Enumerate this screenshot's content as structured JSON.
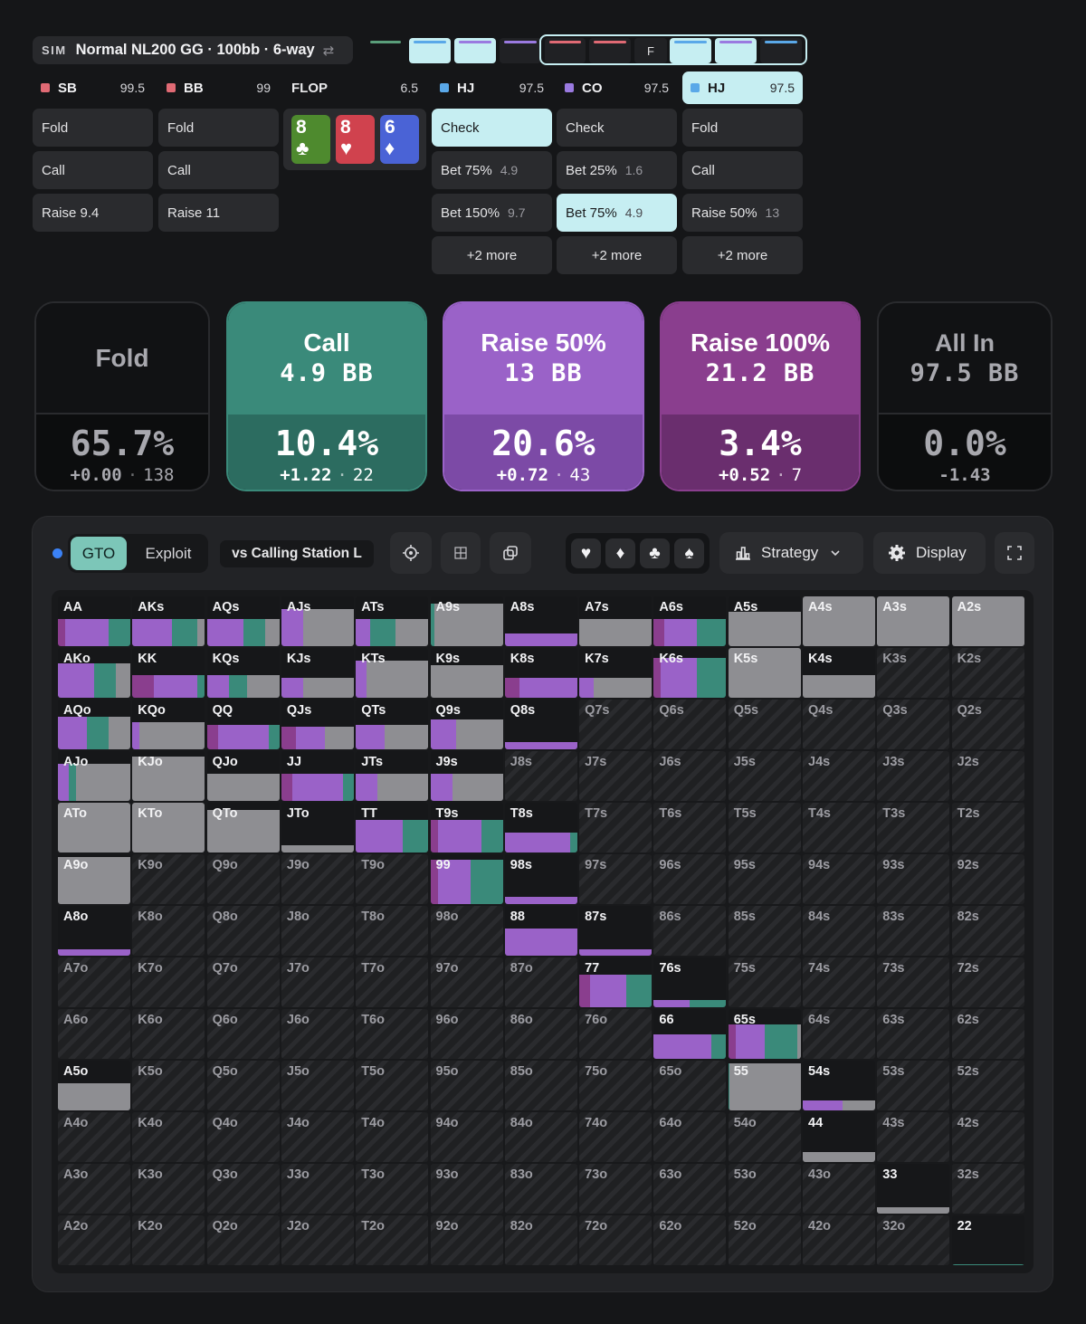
{
  "header": {
    "sim_tag": "SIM",
    "sim_name": "Normal NL200 GG · 100bb · 6-way",
    "swap_icon": "⇄",
    "history": [
      {
        "color": "#5a9e7a",
        "active": false,
        "label": ""
      },
      {
        "color": "#5aa8e8",
        "active": true,
        "label": ""
      },
      {
        "color": "#9a7ae0",
        "active": true,
        "label": ""
      },
      {
        "color": "#9a7ae0",
        "active": false,
        "label": ""
      },
      {
        "color": "#e06a74",
        "active": false,
        "label": ""
      },
      {
        "color": "#e06a74",
        "active": false,
        "label": ""
      },
      {
        "color": "",
        "active": false,
        "label": "F"
      },
      {
        "color": "#5aa8e8",
        "active": true,
        "label": ""
      },
      {
        "color": "#9a7ae0",
        "active": true,
        "label": ""
      },
      {
        "color": "#5aa8e8",
        "active": false,
        "label": ""
      }
    ]
  },
  "players": [
    {
      "name": "SB",
      "stack": "99.5",
      "color": "#e06a74",
      "selected": false,
      "actions": [
        {
          "label": "Fold"
        },
        {
          "label": "Call"
        },
        {
          "label": "Raise 9.4"
        }
      ]
    },
    {
      "name": "BB",
      "stack": "99",
      "color": "#e06a74",
      "selected": false,
      "actions": [
        {
          "label": "Fold"
        },
        {
          "label": "Call"
        },
        {
          "label": "Raise 11"
        }
      ]
    },
    {
      "name": "HJ",
      "stack": "97.5",
      "color": "#5aa8e8",
      "selected": false,
      "actions": [
        {
          "label": "Check",
          "selected": true
        },
        {
          "label": "Bet 75%",
          "size": "4.9"
        },
        {
          "label": "Bet 150%",
          "size": "9.7"
        },
        {
          "label": "+2 more",
          "more": true
        }
      ]
    },
    {
      "name": "CO",
      "stack": "97.5",
      "color": "#9a7ae0",
      "selected": false,
      "actions": [
        {
          "label": "Check"
        },
        {
          "label": "Bet 25%",
          "size": "1.6"
        },
        {
          "label": "Bet 75%",
          "size": "4.9",
          "selected": true
        },
        {
          "label": "+2 more",
          "more": true
        }
      ]
    },
    {
      "name": "HJ",
      "stack": "97.5",
      "color": "#5aa8e8",
      "selected": true,
      "actions": [
        {
          "label": "Fold"
        },
        {
          "label": "Call"
        },
        {
          "label": "Raise 50%",
          "size": "13"
        },
        {
          "label": "+2 more",
          "more": true
        }
      ]
    }
  ],
  "flop": {
    "label": "FLOP",
    "pot": "6.5",
    "cards": [
      {
        "rank": "8",
        "suit": "♣",
        "color": "#4e8a2e"
      },
      {
        "rank": "8",
        "suit": "♥",
        "color": "#d0424e"
      },
      {
        "rank": "6",
        "suit": "♦",
        "color": "#4a63d6"
      }
    ]
  },
  "action_cards": [
    {
      "t1": "Fold",
      "t2": "",
      "pct": "65.7%",
      "ev": "+0.00",
      "combos": "138",
      "top": "#111214",
      "bot": "#0c0d0e",
      "fg": "#a8a8ae"
    },
    {
      "t1": "Call",
      "t2": "4.9 BB",
      "pct": "10.4%",
      "ev": "+1.22",
      "combos": "22",
      "top": "#3a8a7a",
      "bot": "#2c6c60",
      "fg": "#ffffff"
    },
    {
      "t1": "Raise 50%",
      "t2": "13 BB",
      "pct": "20.6%",
      "ev": "+0.72",
      "combos": "43",
      "top": "#9a62c8",
      "bot": "#7c4aa6",
      "fg": "#ffffff"
    },
    {
      "t1": "Raise 100%",
      "t2": "21.2 BB",
      "pct": "3.4%",
      "ev": "+0.52",
      "combos": "7",
      "top": "#8a3e8e",
      "bot": "#6a2e6e",
      "fg": "#ffffff"
    },
    {
      "t1": "All In",
      "t2": "97.5 BB",
      "pct": "0.0%",
      "ev": "-1.43",
      "combos": "",
      "top": "#111214",
      "bot": "#0c0d0e",
      "fg": "#a8a8ae"
    }
  ],
  "toolbar": {
    "gto": "GTO",
    "exploit": "Exploit",
    "vs": "vs Calling Station L",
    "strategy": "Strategy",
    "display": "Display",
    "suits": [
      "♥",
      "♦",
      "♣",
      "♠"
    ]
  },
  "colors": {
    "fold": "#8e8e92",
    "call": "#3a8a7a",
    "raise50": "#9a62c8",
    "raise100": "#8a3e8e"
  },
  "matrix": {
    "ranks": [
      "A",
      "K",
      "Q",
      "J",
      "T",
      "9",
      "8",
      "7",
      "6",
      "5",
      "4",
      "3",
      "2"
    ],
    "rows": [
      [
        "AA",
        "AKs",
        "AQs",
        "AJs",
        "ATs",
        "A9s",
        "A8s",
        "A7s",
        "A6s",
        "A5s",
        "A4s",
        "A3s",
        "A2s"
      ],
      [
        "AKo",
        "KK",
        "KQs",
        "KJs",
        "KTs",
        "K9s",
        "K8s",
        "K7s",
        "K6s",
        "K5s",
        "K4s",
        "K3s",
        "K2s"
      ],
      [
        "AQo",
        "KQo",
        "QQ",
        "QJs",
        "QTs",
        "Q9s",
        "Q8s",
        "Q7s",
        "Q6s",
        "Q5s",
        "Q4s",
        "Q3s",
        "Q2s"
      ],
      [
        "AJo",
        "KJo",
        "QJo",
        "JJ",
        "JTs",
        "J9s",
        "J8s",
        "J7s",
        "J6s",
        "J5s",
        "J4s",
        "J3s",
        "J2s"
      ],
      [
        "ATo",
        "KTo",
        "QTo",
        "JTo",
        "TT",
        "T9s",
        "T8s",
        "T7s",
        "T6s",
        "T5s",
        "T4s",
        "T3s",
        "T2s"
      ],
      [
        "A9o",
        "K9o",
        "Q9o",
        "J9o",
        "T9o",
        "99",
        "98s",
        "97s",
        "96s",
        "95s",
        "94s",
        "93s",
        "92s"
      ],
      [
        "A8o",
        "K8o",
        "Q8o",
        "J8o",
        "T8o",
        "98o",
        "88",
        "87s",
        "86s",
        "85s",
        "84s",
        "83s",
        "82s"
      ],
      [
        "A7o",
        "K7o",
        "Q7o",
        "J7o",
        "T7o",
        "97o",
        "87o",
        "77",
        "76s",
        "75s",
        "74s",
        "73s",
        "72s"
      ],
      [
        "A6o",
        "K6o",
        "Q6o",
        "J6o",
        "T6o",
        "96o",
        "86o",
        "76o",
        "66",
        "65s",
        "64s",
        "63s",
        "62s"
      ],
      [
        "A5o",
        "K5o",
        "Q5o",
        "J5o",
        "T5o",
        "95o",
        "85o",
        "75o",
        "65o",
        "55",
        "54s",
        "53s",
        "52s"
      ],
      [
        "A4o",
        "K4o",
        "Q4o",
        "J4o",
        "T4o",
        "94o",
        "84o",
        "74o",
        "64o",
        "54o",
        "44",
        "43s",
        "42s"
      ],
      [
        "A3o",
        "K3o",
        "Q3o",
        "J3o",
        "T3o",
        "93o",
        "83o",
        "73o",
        "63o",
        "53o",
        "43o",
        "33",
        "32s"
      ],
      [
        "A2o",
        "K2o",
        "Q2o",
        "J2o",
        "T2o",
        "92o",
        "82o",
        "72o",
        "62o",
        "52o",
        "42o",
        "32o",
        "22"
      ]
    ],
    "strategy": {
      "AA": {
        "h": 0.55,
        "mix": [
          [
            "raise100",
            0.1
          ],
          [
            "raise50",
            0.6
          ],
          [
            "call",
            0.3
          ]
        ]
      },
      "AKs": {
        "h": 0.55,
        "mix": [
          [
            "raise50",
            0.55
          ],
          [
            "call",
            0.35
          ],
          [
            "fold",
            0.1
          ]
        ]
      },
      "AQs": {
        "h": 0.55,
        "mix": [
          [
            "raise50",
            0.5
          ],
          [
            "call",
            0.3
          ],
          [
            "fold",
            0.2
          ]
        ]
      },
      "AJs": {
        "h": 0.75,
        "mix": [
          [
            "raise50",
            0.3
          ],
          [
            "fold",
            0.7
          ]
        ]
      },
      "ATs": {
        "h": 0.55,
        "mix": [
          [
            "raise50",
            0.2
          ],
          [
            "call",
            0.35
          ],
          [
            "fold",
            0.45
          ]
        ]
      },
      "A9s": {
        "h": 0.85,
        "mix": [
          [
            "call",
            0.05
          ],
          [
            "fold",
            0.95
          ]
        ]
      },
      "A8s": {
        "h": 0.25,
        "mix": [
          [
            "raise50",
            1.0
          ]
        ]
      },
      "A7s": {
        "h": 0.55,
        "mix": [
          [
            "fold",
            1.0
          ]
        ]
      },
      "A6s": {
        "h": 0.55,
        "mix": [
          [
            "raise100",
            0.15
          ],
          [
            "raise50",
            0.45
          ],
          [
            "call",
            0.4
          ]
        ]
      },
      "A5s": {
        "h": 0.7,
        "mix": [
          [
            "fold",
            1.0
          ]
        ]
      },
      "A4s": {
        "h": 1.0,
        "mix": [
          [
            "fold",
            1.0
          ]
        ]
      },
      "A3s": {
        "h": 1.0,
        "mix": [
          [
            "fold",
            1.0
          ]
        ]
      },
      "A2s": {
        "h": 1.0,
        "mix": [
          [
            "fold",
            1.0
          ]
        ]
      },
      "AKo": {
        "h": 0.7,
        "mix": [
          [
            "raise50",
            0.5
          ],
          [
            "call",
            0.3
          ],
          [
            "fold",
            0.2
          ]
        ]
      },
      "KK": {
        "h": 0.45,
        "mix": [
          [
            "raise100",
            0.3
          ],
          [
            "raise50",
            0.6
          ],
          [
            "call",
            0.1
          ]
        ]
      },
      "KQs": {
        "h": 0.45,
        "mix": [
          [
            "raise50",
            0.3
          ],
          [
            "call",
            0.25
          ],
          [
            "fold",
            0.45
          ]
        ]
      },
      "KJs": {
        "h": 0.4,
        "mix": [
          [
            "raise50",
            0.3
          ],
          [
            "fold",
            0.7
          ]
        ]
      },
      "KTs": {
        "h": 0.75,
        "mix": [
          [
            "raise50",
            0.15
          ],
          [
            "fold",
            0.85
          ]
        ]
      },
      "K9s": {
        "h": 0.65,
        "mix": [
          [
            "fold",
            1.0
          ]
        ]
      },
      "K8s": {
        "h": 0.4,
        "mix": [
          [
            "raise100",
            0.2
          ],
          [
            "raise50",
            0.8
          ]
        ]
      },
      "K7s": {
        "h": 0.4,
        "mix": [
          [
            "raise50",
            0.2
          ],
          [
            "fold",
            0.8
          ]
        ]
      },
      "K6s": {
        "h": 0.8,
        "mix": [
          [
            "raise100",
            0.1
          ],
          [
            "raise50",
            0.5
          ],
          [
            "call",
            0.4
          ]
        ]
      },
      "K5s": {
        "h": 1.0,
        "mix": [
          [
            "fold",
            1.0
          ]
        ]
      },
      "K4s": {
        "h": 0.45,
        "mix": [
          [
            "fold",
            1.0
          ]
        ]
      },
      "AQo": {
        "h": 0.65,
        "mix": [
          [
            "raise50",
            0.4
          ],
          [
            "call",
            0.3
          ],
          [
            "fold",
            0.3
          ]
        ]
      },
      "KQo": {
        "h": 0.55,
        "mix": [
          [
            "raise50",
            0.1
          ],
          [
            "fold",
            0.9
          ]
        ]
      },
      "QQ": {
        "h": 0.5,
        "mix": [
          [
            "raise100",
            0.15
          ],
          [
            "raise50",
            0.7
          ],
          [
            "call",
            0.15
          ]
        ]
      },
      "QJs": {
        "h": 0.45,
        "mix": [
          [
            "raise100",
            0.2
          ],
          [
            "raise50",
            0.4
          ],
          [
            "fold",
            0.4
          ]
        ]
      },
      "QTs": {
        "h": 0.5,
        "mix": [
          [
            "raise50",
            0.4
          ],
          [
            "fold",
            0.6
          ]
        ]
      },
      "Q9s": {
        "h": 0.6,
        "mix": [
          [
            "raise50",
            0.35
          ],
          [
            "fold",
            0.65
          ]
        ]
      },
      "Q8s": {
        "h": 0.15,
        "mix": [
          [
            "raise50",
            1.0
          ]
        ]
      },
      "AJo": {
        "h": 0.75,
        "mix": [
          [
            "raise50",
            0.15
          ],
          [
            "call",
            0.1
          ],
          [
            "fold",
            0.75
          ]
        ]
      },
      "KJo": {
        "h": 0.9,
        "mix": [
          [
            "fold",
            1.0
          ]
        ]
      },
      "QJo": {
        "h": 0.55,
        "mix": [
          [
            "fold",
            1.0
          ]
        ]
      },
      "JJ": {
        "h": 0.55,
        "mix": [
          [
            "raise100",
            0.15
          ],
          [
            "raise50",
            0.7
          ],
          [
            "call",
            0.15
          ]
        ]
      },
      "JTs": {
        "h": 0.55,
        "mix": [
          [
            "raise50",
            0.3
          ],
          [
            "fold",
            0.7
          ]
        ]
      },
      "J9s": {
        "h": 0.55,
        "mix": [
          [
            "raise50",
            0.3
          ],
          [
            "fold",
            0.7
          ]
        ]
      },
      "ATo": {
        "h": 1.0,
        "mix": [
          [
            "fold",
            1.0
          ]
        ]
      },
      "KTo": {
        "h": 1.0,
        "mix": [
          [
            "fold",
            1.0
          ]
        ]
      },
      "QTo": {
        "h": 0.85,
        "mix": [
          [
            "fold",
            1.0
          ]
        ]
      },
      "JTo": {
        "h": 0.15,
        "mix": [
          [
            "fold",
            1.0
          ]
        ]
      },
      "TT": {
        "h": 0.65,
        "mix": [
          [
            "raise50",
            0.65
          ],
          [
            "call",
            0.35
          ]
        ]
      },
      "T9s": {
        "h": 0.65,
        "mix": [
          [
            "raise100",
            0.1
          ],
          [
            "raise50",
            0.6
          ],
          [
            "call",
            0.3
          ]
        ]
      },
      "T8s": {
        "h": 0.4,
        "mix": [
          [
            "raise50",
            0.9
          ],
          [
            "call",
            0.1
          ]
        ]
      },
      "A9o": {
        "h": 0.95,
        "mix": [
          [
            "fold",
            1.0
          ]
        ]
      },
      "99": {
        "h": 0.9,
        "mix": [
          [
            "raise100",
            0.1
          ],
          [
            "raise50",
            0.45
          ],
          [
            "call",
            0.45
          ]
        ]
      },
      "98s": {
        "h": 0.15,
        "mix": [
          [
            "raise50",
            1.0
          ]
        ]
      },
      "A8o": {
        "h": 0.12,
        "mix": [
          [
            "raise50",
            1.0
          ]
        ]
      },
      "88": {
        "h": 0.55,
        "mix": [
          [
            "raise50",
            1.0
          ]
        ]
      },
      "87s": {
        "h": 0.12,
        "mix": [
          [
            "raise50",
            1.0
          ]
        ]
      },
      "77": {
        "h": 0.65,
        "mix": [
          [
            "raise100",
            0.15
          ],
          [
            "raise50",
            0.5
          ],
          [
            "call",
            0.35
          ]
        ]
      },
      "76s": {
        "h": 0.15,
        "mix": [
          [
            "raise50",
            0.5
          ],
          [
            "call",
            0.5
          ]
        ]
      },
      "66": {
        "h": 0.5,
        "mix": [
          [
            "raise50",
            0.8
          ],
          [
            "call",
            0.2
          ]
        ]
      },
      "65s": {
        "h": 0.7,
        "mix": [
          [
            "raise100",
            0.1
          ],
          [
            "raise50",
            0.4
          ],
          [
            "call",
            0.45
          ],
          [
            "fold",
            0.05
          ]
        ]
      },
      "A5o": {
        "h": 0.55,
        "mix": [
          [
            "fold",
            1.0
          ]
        ]
      },
      "55": {
        "h": 0.95,
        "mix": [
          [
            "call",
            0.02
          ],
          [
            "fold",
            0.98
          ]
        ]
      },
      "54s": {
        "h": 0.2,
        "mix": [
          [
            "raise50",
            0.55
          ],
          [
            "fold",
            0.45
          ]
        ]
      },
      "44": {
        "h": 0.2,
        "mix": [
          [
            "fold",
            1.0
          ]
        ]
      },
      "33": {
        "h": 0.12,
        "mix": [
          [
            "fold",
            1.0
          ]
        ]
      },
      "22": {
        "h": 0.02,
        "mix": [
          [
            "call",
            1.0
          ]
        ]
      }
    }
  }
}
